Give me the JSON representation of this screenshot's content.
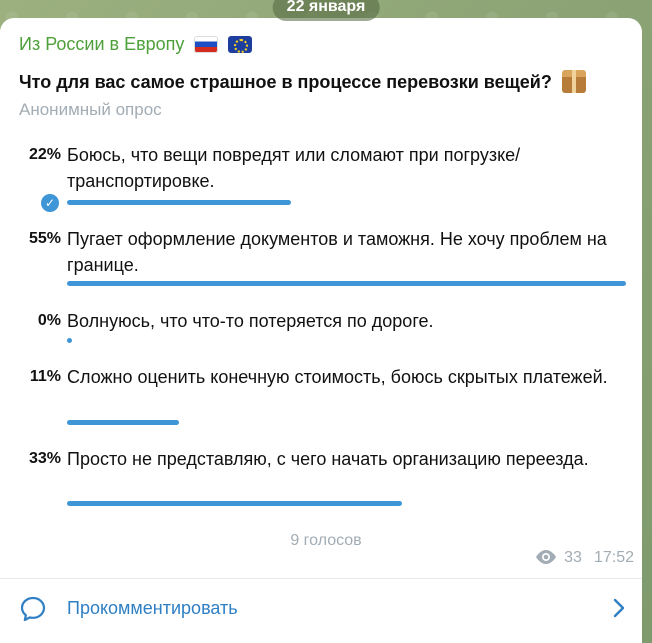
{
  "date_badge": "22 января",
  "channel": {
    "name": "Из России в Европу",
    "flags": [
      "flag-ru-icon",
      "flag-eu-icon"
    ]
  },
  "poll": {
    "question": "Что для вас самое страшное в процессе перевозки вещей?",
    "question_icon": "package-icon",
    "type": "Анонимный опрос",
    "options": [
      {
        "percent_label": "22%",
        "percent": 22,
        "text": "Боюсь, что вещи повредят или сломают при погрузке/транспортировке.",
        "chosen": true
      },
      {
        "percent_label": "55%",
        "percent": 55,
        "text": "Пугает оформление документов и таможня. Не хочу проблем на границе.",
        "chosen": false
      },
      {
        "percent_label": "0%",
        "percent": 0,
        "text": "Волнуюсь, что что-то потеряется по дороге.",
        "chosen": false
      },
      {
        "percent_label": "11%",
        "percent": 11,
        "text": "Сложно оценить конечную стоимость, боюсь скрытых платежей.",
        "chosen": false
      },
      {
        "percent_label": "33%",
        "percent": 33,
        "text": "Просто не представляю, с чего начать организацию переезда.",
        "chosen": false
      }
    ],
    "votes_label": "9 голосов"
  },
  "meta": {
    "views": "33",
    "time": "17:52"
  },
  "comment": {
    "label": "Прокомментировать"
  },
  "colors": {
    "accent": "#3f96d6",
    "channel_name": "#4ea03a",
    "link": "#2f7fc4",
    "muted": "#a2acb4"
  }
}
